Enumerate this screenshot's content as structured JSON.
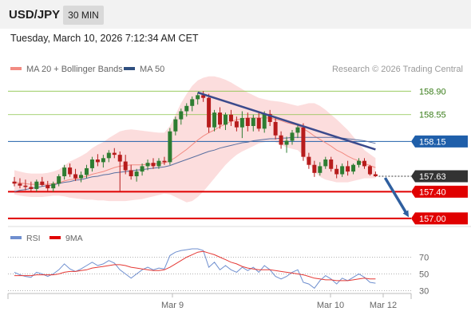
{
  "header": {
    "symbol": "USD/JPY",
    "timeframe": "30 MIN"
  },
  "timestamp": "Tuesday, March 10, 2026 7:12:34 AM CET",
  "legend": {
    "ma20_label": "MA 20 + Bollinger Bands",
    "ma50_label": "MA 50",
    "credit": "Research © 2026 Trading Central"
  },
  "rsi_legend": {
    "rsi_label": "RSI",
    "ma_label": "9MA"
  },
  "colors": {
    "ma20": "#f28b82",
    "ma50": "#2f4f7f",
    "bullish": "#2e7d32",
    "bearish": "#b71c1c",
    "support": "#e00000",
    "resistance": "#8bc34a",
    "pivot": "#1f5faa",
    "trend": "#3b4a8c",
    "arrow": "#2f5f9f",
    "rsi": "#6f8fcf",
    "rsi_ma": "#e53935"
  },
  "chart_data": [
    {
      "type": "candlestick",
      "name": "price",
      "xlabels": [
        "Mar 9",
        "Mar 10",
        "Mar 12"
      ],
      "price_levels": [
        {
          "label": "158.90",
          "value": 158.9,
          "kind": "resistance"
        },
        {
          "label": "158.55",
          "value": 158.55,
          "kind": "resistance"
        },
        {
          "label": "158.15",
          "value": 158.15,
          "kind": "pivot"
        },
        {
          "label": "157.63",
          "value": 157.63,
          "kind": "current"
        },
        {
          "label": "157.40",
          "value": 157.4,
          "kind": "support"
        },
        {
          "label": "157.00",
          "value": 157.0,
          "kind": "support"
        }
      ],
      "ylim": [
        156.88,
        159.13
      ],
      "candles": [
        [
          157.55,
          157.62,
          157.48,
          157.52
        ],
        [
          157.52,
          157.6,
          157.45,
          157.49
        ],
        [
          157.49,
          157.58,
          157.42,
          157.47
        ],
        [
          157.47,
          157.55,
          157.4,
          157.44
        ],
        [
          157.44,
          157.58,
          157.4,
          157.55
        ],
        [
          157.55,
          157.62,
          157.48,
          157.5
        ],
        [
          157.5,
          157.56,
          157.4,
          157.45
        ],
        [
          157.45,
          157.55,
          157.4,
          157.52
        ],
        [
          157.52,
          157.66,
          157.48,
          157.63
        ],
        [
          157.63,
          157.8,
          157.58,
          157.76
        ],
        [
          157.76,
          157.82,
          157.62,
          157.66
        ],
        [
          157.66,
          157.74,
          157.56,
          157.6
        ],
        [
          157.6,
          157.7,
          157.54,
          157.65
        ],
        [
          157.65,
          157.8,
          157.6,
          157.75
        ],
        [
          157.75,
          157.92,
          157.7,
          157.88
        ],
        [
          157.88,
          157.96,
          157.78,
          157.84
        ],
        [
          157.84,
          157.95,
          157.76,
          157.9
        ],
        [
          157.9,
          158.02,
          157.84,
          157.98
        ],
        [
          157.98,
          158.05,
          157.9,
          157.95
        ],
        [
          157.95,
          158.0,
          157.4,
          157.85
        ],
        [
          157.85,
          157.95,
          157.66,
          157.72
        ],
        [
          157.72,
          157.8,
          157.58,
          157.63
        ],
        [
          157.63,
          157.74,
          157.55,
          157.7
        ],
        [
          157.7,
          157.82,
          157.64,
          157.78
        ],
        [
          157.78,
          157.88,
          157.72,
          157.83
        ],
        [
          157.83,
          157.9,
          157.74,
          157.78
        ],
        [
          157.78,
          157.9,
          157.74,
          157.86
        ],
        [
          157.86,
          157.92,
          157.8,
          157.84
        ],
        [
          157.84,
          158.35,
          157.8,
          158.3
        ],
        [
          158.3,
          158.52,
          158.24,
          158.48
        ],
        [
          158.48,
          158.64,
          158.4,
          158.6
        ],
        [
          158.6,
          158.72,
          158.52,
          158.68
        ],
        [
          158.68,
          158.82,
          158.6,
          158.78
        ],
        [
          158.78,
          158.88,
          158.7,
          158.84
        ],
        [
          158.84,
          158.9,
          158.74,
          158.8
        ],
        [
          158.8,
          158.86,
          158.28,
          158.36
        ],
        [
          158.36,
          158.62,
          158.3,
          158.58
        ],
        [
          158.58,
          158.66,
          158.34,
          158.4
        ],
        [
          158.4,
          158.58,
          158.32,
          158.55
        ],
        [
          158.55,
          158.62,
          158.38,
          158.45
        ],
        [
          158.45,
          158.52,
          158.3,
          158.36
        ],
        [
          158.36,
          158.6,
          158.2,
          158.5
        ],
        [
          158.5,
          158.58,
          158.3,
          158.38
        ],
        [
          158.38,
          158.55,
          158.3,
          158.5
        ],
        [
          158.5,
          158.58,
          158.3,
          158.34
        ],
        [
          158.34,
          158.6,
          158.28,
          158.56
        ],
        [
          158.56,
          158.62,
          158.38,
          158.44
        ],
        [
          158.44,
          158.5,
          158.18,
          158.24
        ],
        [
          158.24,
          158.3,
          158.04,
          158.1
        ],
        [
          158.1,
          158.22,
          157.98,
          158.16
        ],
        [
          158.16,
          158.32,
          158.1,
          158.28
        ],
        [
          158.28,
          158.4,
          158.2,
          158.36
        ],
        [
          158.36,
          158.42,
          157.86,
          157.92
        ],
        [
          157.92,
          157.98,
          157.74,
          157.8
        ],
        [
          157.8,
          157.86,
          157.62,
          157.68
        ],
        [
          157.68,
          157.84,
          157.64,
          157.78
        ],
        [
          157.78,
          157.92,
          157.74,
          157.88
        ],
        [
          157.88,
          157.92,
          157.7,
          157.74
        ],
        [
          157.74,
          157.8,
          157.6,
          157.66
        ],
        [
          157.66,
          157.82,
          157.62,
          157.78
        ],
        [
          157.78,
          157.86,
          157.64,
          157.7
        ],
        [
          157.7,
          157.82,
          157.66,
          157.8
        ],
        [
          157.8,
          157.9,
          157.76,
          157.86
        ],
        [
          157.86,
          157.9,
          157.74,
          157.78
        ],
        [
          157.78,
          157.8,
          157.64,
          157.66
        ],
        [
          157.66,
          157.7,
          157.62,
          157.63
        ]
      ],
      "ma20": [
        157.54,
        157.53,
        157.52,
        157.51,
        157.51,
        157.51,
        157.51,
        157.52,
        157.53,
        157.56,
        157.58,
        157.59,
        157.61,
        157.63,
        157.66,
        157.68,
        157.7,
        157.73,
        157.76,
        157.78,
        157.79,
        157.8,
        157.8,
        157.8,
        157.81,
        157.81,
        157.82,
        157.83,
        157.86,
        157.91,
        157.97,
        158.03,
        158.1,
        158.17,
        158.23,
        158.28,
        158.32,
        158.37,
        158.41,
        158.45,
        158.47,
        158.49,
        158.5,
        158.5,
        158.5,
        158.5,
        158.5,
        158.48,
        158.46,
        158.43,
        158.41,
        158.39,
        158.34,
        158.29,
        158.23,
        158.18,
        158.13,
        158.08,
        158.02,
        157.98,
        157.93,
        157.89,
        157.86,
        157.82,
        157.79,
        157.76
      ],
      "bb_upper": [
        157.72,
        157.7,
        157.68,
        157.67,
        157.67,
        157.67,
        157.68,
        157.7,
        157.73,
        157.79,
        157.85,
        157.89,
        157.93,
        157.98,
        158.05,
        158.1,
        158.14,
        158.2,
        158.25,
        158.3,
        158.32,
        158.33,
        158.32,
        158.31,
        158.3,
        158.29,
        158.28,
        158.28,
        158.38,
        158.55,
        158.72,
        158.86,
        158.98,
        159.06,
        159.1,
        159.12,
        159.12,
        159.1,
        159.07,
        159.03,
        158.98,
        158.93,
        158.88,
        158.84,
        158.8,
        158.78,
        158.76,
        158.75,
        158.74,
        158.72,
        158.7,
        158.68,
        158.7,
        158.72,
        158.72,
        158.68,
        158.62,
        158.55,
        158.48,
        158.4,
        158.32,
        158.22,
        158.12,
        158.02,
        157.96,
        157.9
      ],
      "bb_lower": [
        157.36,
        157.34,
        157.33,
        157.32,
        157.32,
        157.32,
        157.33,
        157.34,
        157.34,
        157.33,
        157.31,
        157.3,
        157.29,
        157.28,
        157.28,
        157.27,
        157.27,
        157.26,
        157.26,
        157.26,
        157.26,
        157.27,
        157.28,
        157.29,
        157.31,
        157.33,
        157.35,
        157.37,
        157.36,
        157.32,
        157.28,
        157.24,
        157.26,
        157.32,
        157.4,
        157.5,
        157.6,
        157.7,
        157.8,
        157.88,
        157.95,
        158.0,
        158.04,
        158.08,
        158.12,
        158.14,
        158.16,
        158.14,
        158.1,
        158.06,
        158.04,
        158.02,
        157.94,
        157.82,
        157.7,
        157.62,
        157.58,
        157.56,
        157.54,
        157.54,
        157.54,
        157.56,
        157.58,
        157.6,
        157.6,
        157.6
      ],
      "ma50": [
        157.4,
        157.42,
        157.43,
        157.45,
        157.46,
        157.48,
        157.49,
        157.5,
        157.52,
        157.54,
        157.55,
        157.57,
        157.58,
        157.6,
        157.62,
        157.63,
        157.65,
        157.66,
        157.68,
        157.69,
        157.7,
        157.71,
        157.72,
        157.73,
        157.74,
        157.75,
        157.76,
        157.77,
        157.79,
        157.82,
        157.85,
        157.88,
        157.91,
        157.94,
        157.97,
        158.0,
        158.02,
        158.05,
        158.07,
        158.09,
        158.11,
        158.13,
        158.14,
        158.16,
        158.17,
        158.18,
        158.19,
        158.19,
        158.2,
        158.2,
        158.21,
        158.21,
        158.21,
        158.21,
        158.21,
        158.21,
        158.21,
        158.21,
        158.2,
        158.2,
        158.19,
        158.18,
        158.17,
        158.16,
        158.14,
        158.12
      ],
      "trendline": [
        [
          33,
          158.88
        ],
        [
          65,
          158.03
        ]
      ]
    },
    {
      "type": "line",
      "name": "rsi",
      "yticks": [
        {
          "label": "70",
          "value": 70
        },
        {
          "label": "50",
          "value": 50
        },
        {
          "label": "30",
          "value": 30
        }
      ],
      "ylim": [
        20,
        80
      ],
      "rsi": [
        52,
        49,
        47,
        46,
        52,
        50,
        47,
        50,
        55,
        62,
        56,
        53,
        56,
        60,
        64,
        60,
        62,
        66,
        63,
        55,
        50,
        45,
        50,
        55,
        58,
        55,
        57,
        56,
        72,
        76,
        78,
        79,
        80,
        80,
        78,
        58,
        64,
        55,
        60,
        55,
        52,
        58,
        54,
        58,
        52,
        60,
        55,
        47,
        44,
        47,
        52,
        55,
        40,
        38,
        33,
        42,
        48,
        44,
        38,
        45,
        42,
        46,
        50,
        46,
        40,
        39
      ],
      "rsi_ma": [
        48,
        48,
        48,
        48,
        49,
        49,
        49,
        49,
        50,
        52,
        53,
        53,
        54,
        55,
        57,
        58,
        59,
        60,
        61,
        61,
        60,
        58,
        57,
        56,
        55,
        54,
        54,
        55,
        58,
        62,
        66,
        70,
        73,
        76,
        77,
        75,
        73,
        70,
        67,
        64,
        62,
        59,
        57,
        56,
        55,
        55,
        55,
        54,
        53,
        52,
        51,
        50,
        49,
        47,
        45,
        44,
        43,
        43,
        42,
        42,
        42,
        43,
        44,
        45,
        44,
        44
      ]
    }
  ]
}
